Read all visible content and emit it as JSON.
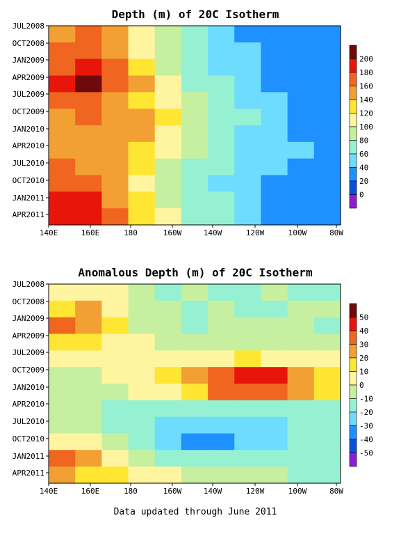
{
  "chart_data": [
    {
      "type": "heatmap",
      "title": "Depth (m) of 20C Isotherm",
      "x_ticks": [
        "140E",
        "160E",
        "180",
        "160W",
        "140W",
        "120W",
        "100W",
        "80W"
      ],
      "y_ticks": [
        "JUL2008",
        "OCT2008",
        "JAN2009",
        "APR2009",
        "JUL2009",
        "OCT2009",
        "JAN2010",
        "APR2010",
        "JUL2010",
        "OCT2010",
        "JAN2011",
        "APR2011"
      ],
      "colorbar": {
        "labels": [
          "200",
          "180",
          "160",
          "140",
          "120",
          "100",
          "80",
          "60",
          "40",
          "20",
          "0"
        ],
        "colors": [
          "#6e0a0a",
          "#e8150a",
          "#f06520",
          "#f2a033",
          "#ffe633",
          "#fff5a0",
          "#c6f0a0",
          "#96f0d2",
          "#6edcff",
          "#1e90ff",
          "#0a50dc",
          "#8c1ed2"
        ]
      },
      "approx_values": [
        [
          165,
          170,
          150,
          125,
          95,
          80,
          60,
          45,
          40,
          40,
          40
        ],
        [
          170,
          175,
          155,
          125,
          100,
          75,
          60,
          50,
          40,
          40,
          45
        ],
        [
          185,
          205,
          175,
          145,
          100,
          80,
          60,
          55,
          45,
          35,
          30
        ],
        [
          190,
          210,
          175,
          150,
          115,
          85,
          70,
          55,
          45,
          40,
          30
        ],
        [
          175,
          180,
          165,
          145,
          120,
          95,
          80,
          65,
          50,
          45,
          40
        ],
        [
          165,
          170,
          165,
          150,
          130,
          100,
          85,
          70,
          55,
          45,
          45
        ],
        [
          165,
          165,
          160,
          150,
          125,
          100,
          80,
          65,
          55,
          45,
          45
        ],
        [
          165,
          165,
          160,
          140,
          110,
          90,
          75,
          65,
          55,
          50,
          45
        ],
        [
          170,
          165,
          150,
          130,
          105,
          85,
          70,
          60,
          55,
          45,
          40
        ],
        [
          175,
          170,
          155,
          125,
          100,
          80,
          65,
          55,
          40,
          35,
          35
        ],
        [
          190,
          190,
          165,
          135,
          100,
          85,
          70,
          55,
          40,
          30,
          30
        ],
        [
          200,
          200,
          170,
          140,
          110,
          85,
          70,
          55,
          45,
          35,
          30
        ]
      ]
    },
    {
      "type": "heatmap",
      "title": "Anomalous Depth (m) of 20C Isotherm",
      "x_ticks": [
        "140E",
        "160E",
        "180",
        "160W",
        "140W",
        "120W",
        "100W",
        "80W"
      ],
      "y_ticks": [
        "JUL2008",
        "OCT2008",
        "JAN2009",
        "APR2009",
        "JUL2009",
        "OCT2009",
        "JAN2010",
        "APR2010",
        "JUL2010",
        "OCT2010",
        "JAN2011",
        "APR2011"
      ],
      "colorbar": {
        "labels": [
          "50",
          "40",
          "30",
          "20",
          "10",
          "0",
          "-10",
          "-20",
          "-30",
          "-40",
          "-50"
        ],
        "colors": [
          "#6e0a0a",
          "#e8150a",
          "#f06520",
          "#f2a033",
          "#ffe633",
          "#fff5a0",
          "#c6f0a0",
          "#96f0d2",
          "#6edcff",
          "#1e90ff",
          "#0a50dc",
          "#8c1ed2"
        ]
      },
      "approx_values": [
        [
          5,
          0,
          0,
          -5,
          -15,
          -10,
          -15,
          -15,
          -10,
          -15,
          -15
        ],
        [
          15,
          20,
          5,
          -5,
          -10,
          -15,
          -10,
          -15,
          -15,
          -10,
          -10
        ],
        [
          30,
          25,
          10,
          -5,
          -10,
          -15,
          -10,
          -10,
          -10,
          -10,
          -15
        ],
        [
          15,
          10,
          5,
          0,
          -5,
          -10,
          -5,
          -5,
          -10,
          -5,
          -5
        ],
        [
          5,
          5,
          5,
          0,
          0,
          0,
          5,
          10,
          5,
          5,
          5
        ],
        [
          -5,
          -5,
          0,
          5,
          10,
          20,
          35,
          40,
          45,
          25,
          10
        ],
        [
          -10,
          -5,
          -5,
          0,
          5,
          15,
          30,
          30,
          35,
          20,
          10
        ],
        [
          -5,
          -10,
          -15,
          -15,
          -15,
          -15,
          -15,
          -20,
          -15,
          -15,
          -15
        ],
        [
          -10,
          -10,
          -15,
          -20,
          -25,
          -30,
          -30,
          -30,
          -25,
          -20,
          -20
        ],
        [
          5,
          0,
          -10,
          -20,
          -30,
          -40,
          -35,
          -30,
          -25,
          -20,
          -15
        ],
        [
          30,
          20,
          5,
          -10,
          -20,
          -20,
          -15,
          -15,
          -15,
          -15,
          -15
        ],
        [
          20,
          15,
          10,
          5,
          5,
          -5,
          -10,
          -10,
          -10,
          -15,
          -15
        ]
      ]
    }
  ],
  "footer": "Data updated through June 2011"
}
